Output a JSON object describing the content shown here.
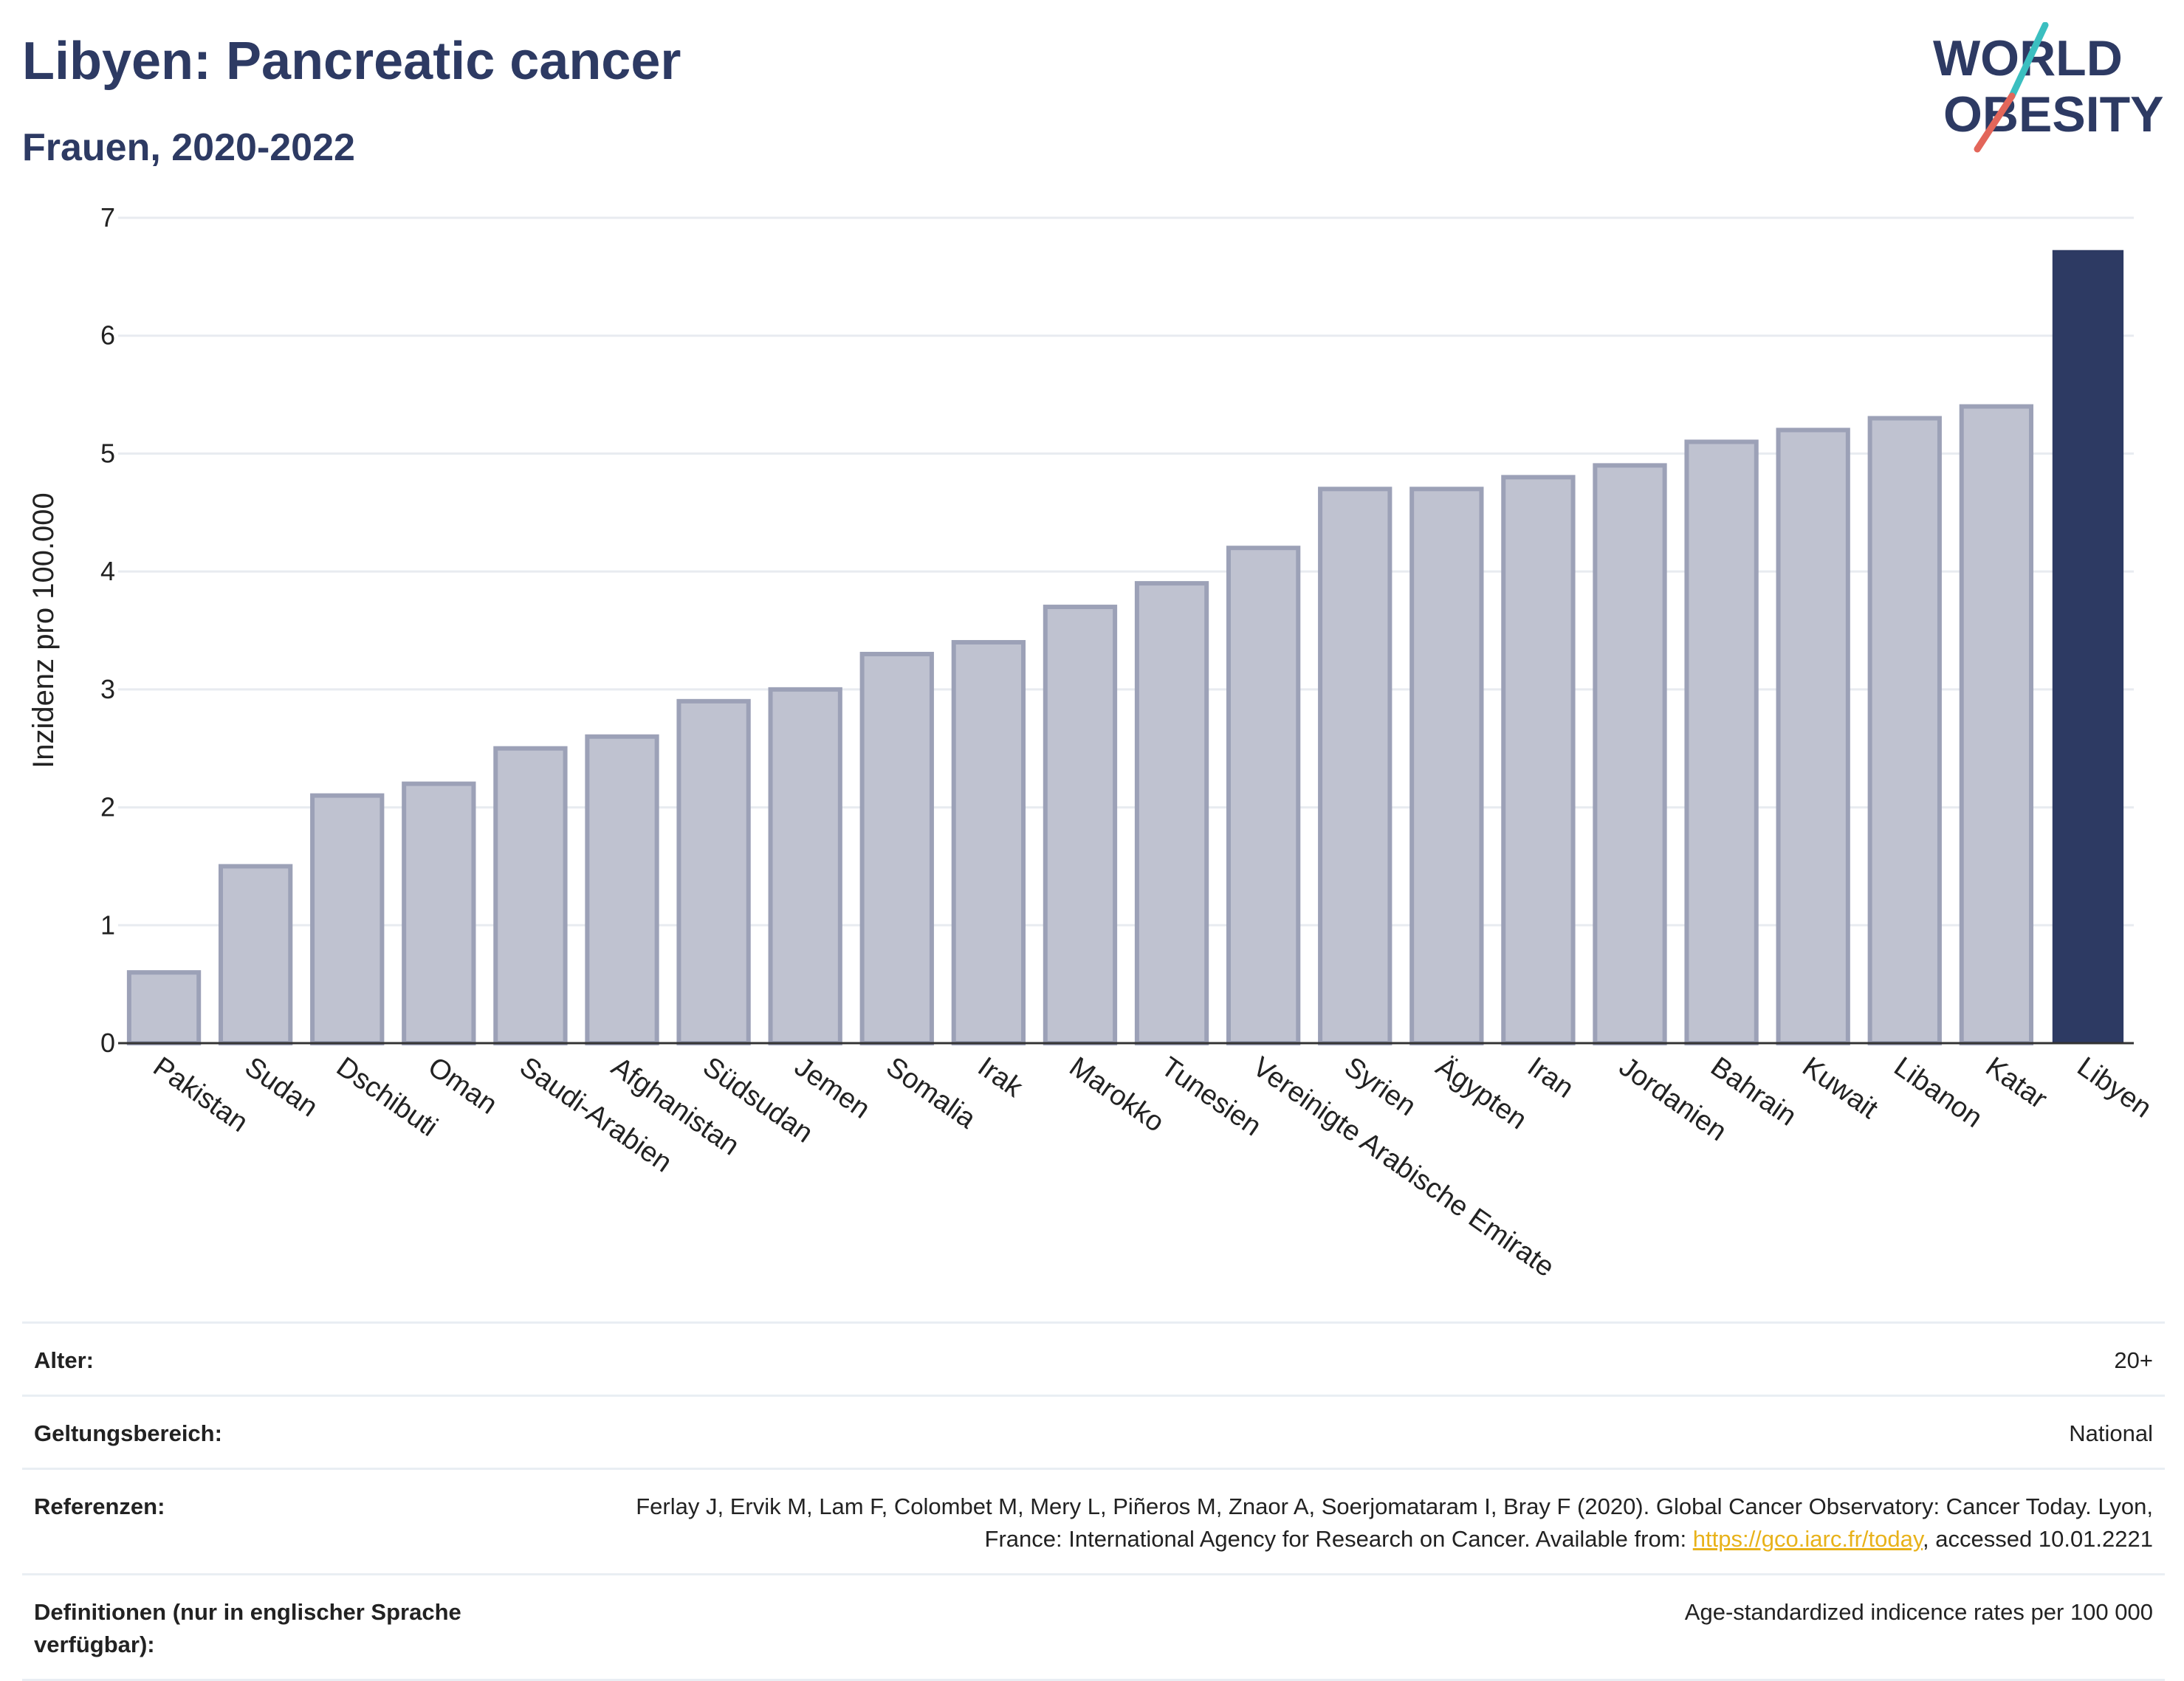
{
  "header": {
    "title": "Libyen: Pancreatic cancer",
    "subtitle": "Frauen, 2020-2022"
  },
  "logo": {
    "line1": "WORLD",
    "line2": "OBESITY",
    "colors": {
      "text": "#2d3a63",
      "slash_teal": "#3bbfc0",
      "slash_red": "#e3665a"
    }
  },
  "chart_data": {
    "type": "bar",
    "ylabel": "Inzidenz pro 100.000",
    "ylim": [
      0,
      7
    ],
    "yticks": [
      "0",
      "1",
      "2",
      "3",
      "4",
      "5",
      "6",
      "7"
    ],
    "grid": true,
    "categories": [
      "Pakistan",
      "Sudan",
      "Dschibuti",
      "Oman",
      "Saudi-Arabien",
      "Afghanistan",
      "Südsudan",
      "Jemen",
      "Somalia",
      "Irak",
      "Marokko",
      "Tunesien",
      "Vereinigte Arabische Emirate",
      "Syrien",
      "Ägypten",
      "Iran",
      "Jordanien",
      "Bahrain",
      "Kuwait",
      "Libanon",
      "Katar",
      "Libyen"
    ],
    "values": [
      0.6,
      1.5,
      2.1,
      2.2,
      2.5,
      2.6,
      2.9,
      3.0,
      3.3,
      3.4,
      3.7,
      3.9,
      4.2,
      4.7,
      4.7,
      4.8,
      4.9,
      5.1,
      5.2,
      5.3,
      5.4,
      6.72
    ],
    "highlight": "Libyen",
    "colors": {
      "bar": "#bfc2d0",
      "bar_border": "#9ca1b7",
      "highlight": "#2d3a63",
      "grid": "#e8ebf0",
      "axis": "#333333"
    }
  },
  "info": {
    "rows": [
      {
        "label": "Alter:",
        "value": "20+"
      },
      {
        "label": "Geltungsbereich:",
        "value": "National"
      },
      {
        "label": "Referenzen:",
        "value_pre": "Ferlay J, Ervik M, Lam F, Colombet M, Mery L, Piñeros M, Znaor A, Soerjomataram I, Bray F (2020). Global Cancer Observatory: Cancer Today. Lyon, France: International Agency for Research on Cancer. Available from: ",
        "link": "https://gco.iarc.fr/today",
        "value_post": ", accessed 10.01.2221"
      },
      {
        "label": "Definitionen (nur in englischer Sprache verfügbar):",
        "value": "Age-standardized indicence rates per 100 000"
      }
    ]
  }
}
